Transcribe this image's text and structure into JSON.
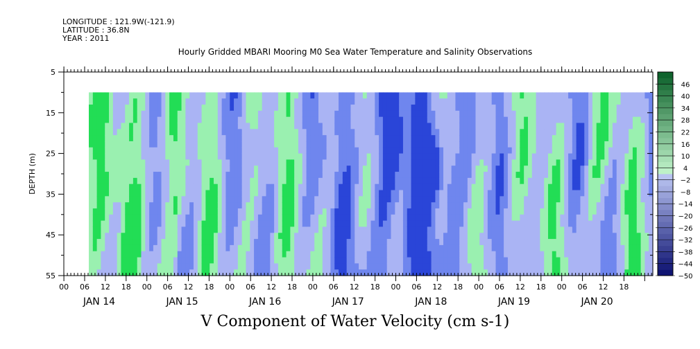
{
  "header": {
    "longitude": "LONGITUDE : 121.9W(-121.9)",
    "latitude": "LATITUDE : 36.8N",
    "year": "YEAR : 2011"
  },
  "chart_data": {
    "type": "heatmap",
    "title": "Hourly Gridded MBARI Mooring M0 Sea Water Temperature and Salinity Observations",
    "xlabel": "V Component of Water Velocity (cm s-1)",
    "ylabel": "DEPTH (m)",
    "ylim": [
      55,
      5
    ],
    "y_ticks": [
      "5",
      "15",
      "25",
      "35",
      "45",
      "55"
    ],
    "x_hour_ticks": [
      "00",
      "06",
      "12",
      "18",
      "00",
      "06",
      "12",
      "18",
      "00",
      "06",
      "12",
      "18",
      "00",
      "06",
      "12",
      "18",
      "00",
      "06",
      "12",
      "18",
      "00",
      "06",
      "12",
      "18",
      "00",
      "06",
      "12",
      "18"
    ],
    "x_day_labels": [
      "JAN 14",
      "JAN 15",
      "JAN 16",
      "JAN 17",
      "JAN 18",
      "JAN 19",
      "JAN 20"
    ],
    "data_depth_range": [
      10,
      55
    ],
    "colorbar": {
      "labels": [
        "46",
        "40",
        "34",
        "28",
        "22",
        "16",
        "10",
        "4",
        "-2",
        "-8",
        "-14",
        "-20",
        "-26",
        "-32",
        "-38",
        "-44",
        "-50"
      ],
      "min": -50,
      "max": 52,
      "step": 3
    },
    "colors": {
      "green_strong": "#22dd55",
      "green_pale": "#9af0b0",
      "blue_pale": "#aab4f4",
      "blue_mid": "#6f86ee",
      "blue_deep": "#2a45d8"
    },
    "grid": false
  }
}
